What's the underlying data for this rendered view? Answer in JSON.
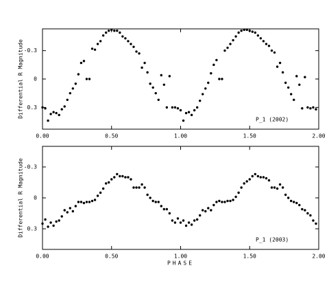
{
  "chart_data": [
    {
      "type": "scatter",
      "ylabel": "Differential R Magnitude",
      "annotation": "P_1 (2002)",
      "color": "#000000",
      "xlim": [
        0,
        2
      ],
      "ylim": [
        0.53,
        -0.53
      ],
      "xticks": [
        {
          "value": 0,
          "label": "0.00"
        },
        {
          "value": 0.5,
          "label": "0.50"
        },
        {
          "value": 1,
          "label": "1.00"
        },
        {
          "value": 1.5,
          "label": "1.50"
        },
        {
          "value": 2,
          "label": "2.00"
        }
      ],
      "yticks": [
        -0.3,
        0,
        0.3
      ],
      "x": [
        0,
        0.02,
        0.04,
        0.06,
        0.08,
        0.1,
        0.12,
        0.14,
        0.16,
        0.18,
        0.2,
        0.22,
        0.24,
        0.26,
        0.28,
        0.3,
        0.32,
        0.34,
        0.36,
        0.38,
        0.4,
        0.42,
        0.44,
        0.46,
        0.48,
        0.5,
        0.52,
        0.54,
        0.56,
        0.58,
        0.6,
        0.62,
        0.64,
        0.66,
        0.68,
        0.7,
        0.72,
        0.74,
        0.76,
        0.78,
        0.8,
        0.82,
        0.84,
        0.86,
        0.88,
        0.9,
        0.92,
        0.94,
        0.96,
        0.98,
        1,
        1.02,
        1.04,
        1.06,
        1.08,
        1.1,
        1.12,
        1.14,
        1.16,
        1.18,
        1.2,
        1.22,
        1.24,
        1.26,
        1.28,
        1.3,
        1.32,
        1.34,
        1.36,
        1.38,
        1.4,
        1.42,
        1.44,
        1.46,
        1.48,
        1.5,
        1.52,
        1.54,
        1.56,
        1.58,
        1.6,
        1.62,
        1.64,
        1.66,
        1.68,
        1.7,
        1.72,
        1.74,
        1.76,
        1.78,
        1.8,
        1.82,
        1.84,
        1.86,
        1.88,
        1.9,
        1.92,
        1.94,
        1.96,
        1.98
      ],
      "values": [
        0.3,
        0.31,
        0.44,
        0.37,
        0.35,
        0.36,
        0.38,
        0.32,
        0.29,
        0.22,
        0.15,
        0.1,
        0.05,
        -0.05,
        -0.17,
        -0.19,
        0.0,
        0.0,
        -0.32,
        -0.31,
        -0.37,
        -0.4,
        -0.46,
        -0.49,
        -0.51,
        -0.52,
        -0.51,
        -0.51,
        -0.49,
        -0.45,
        -0.43,
        -0.4,
        -0.37,
        -0.34,
        -0.29,
        -0.27,
        -0.12,
        -0.17,
        -0.07,
        0.05,
        0.09,
        0.15,
        0.22,
        -0.04,
        0.06,
        0.3,
        -0.03,
        0.3,
        0.3,
        0.31,
        0.33,
        0.44,
        0.36,
        0.35,
        0.38,
        0.33,
        0.3,
        0.23,
        0.16,
        0.1,
        0.04,
        -0.06,
        -0.15,
        -0.2,
        0.0,
        0.0,
        -0.3,
        -0.33,
        -0.37,
        -0.41,
        -0.45,
        -0.49,
        -0.51,
        -0.52,
        -0.52,
        -0.51,
        -0.5,
        -0.49,
        -0.46,
        -0.43,
        -0.4,
        -0.37,
        -0.35,
        -0.3,
        -0.28,
        -0.13,
        -0.17,
        -0.07,
        0.04,
        0.09,
        0.16,
        0.22,
        -0.03,
        0.06,
        0.31,
        -0.02,
        0.3,
        0.31,
        0.3,
        0.32
      ]
    },
    {
      "type": "scatter",
      "ylabel": "Differential R Magnitude",
      "annotation": "P_1 (2003)",
      "xlabel": "PHASE",
      "color": "#000000",
      "xlim": [
        0,
        2
      ],
      "ylim": [
        0.5,
        -0.5
      ],
      "xticks": [
        {
          "value": 0,
          "label": "0.00"
        },
        {
          "value": 0.5,
          "label": "0.50"
        },
        {
          "value": 1,
          "label": "1.00"
        },
        {
          "value": 1.5,
          "label": "1.50"
        },
        {
          "value": 2,
          "label": "2.00"
        }
      ],
      "yticks": [
        -0.3,
        0,
        0.3
      ],
      "x": [
        0,
        0.02,
        0.04,
        0.06,
        0.08,
        0.1,
        0.12,
        0.14,
        0.16,
        0.18,
        0.2,
        0.22,
        0.24,
        0.26,
        0.28,
        0.3,
        0.32,
        0.34,
        0.36,
        0.38,
        0.4,
        0.42,
        0.44,
        0.46,
        0.48,
        0.5,
        0.52,
        0.54,
        0.56,
        0.58,
        0.6,
        0.62,
        0.64,
        0.66,
        0.68,
        0.7,
        0.72,
        0.74,
        0.76,
        0.78,
        0.8,
        0.82,
        0.84,
        0.86,
        0.88,
        0.9,
        0.92,
        0.94,
        0.96,
        0.98,
        1,
        1.02,
        1.04,
        1.06,
        1.08,
        1.1,
        1.12,
        1.14,
        1.16,
        1.18,
        1.2,
        1.22,
        1.24,
        1.26,
        1.28,
        1.3,
        1.32,
        1.34,
        1.36,
        1.38,
        1.4,
        1.42,
        1.44,
        1.46,
        1.48,
        1.5,
        1.52,
        1.54,
        1.56,
        1.58,
        1.6,
        1.62,
        1.64,
        1.66,
        1.68,
        1.7,
        1.72,
        1.74,
        1.76,
        1.78,
        1.8,
        1.82,
        1.84,
        1.86,
        1.88,
        1.9,
        1.92,
        1.94,
        1.96,
        1.98
      ],
      "values": [
        0.25,
        0.21,
        0.28,
        0.24,
        0.27,
        0.23,
        0.22,
        0.18,
        0.12,
        0.14,
        0.1,
        0.13,
        0.08,
        0.04,
        0.04,
        0.05,
        0.04,
        0.04,
        0.03,
        0.02,
        -0.02,
        -0.05,
        -0.09,
        -0.14,
        -0.15,
        -0.18,
        -0.2,
        -0.23,
        -0.21,
        -0.21,
        -0.2,
        -0.2,
        -0.18,
        -0.1,
        -0.1,
        -0.1,
        -0.13,
        -0.1,
        -0.03,
        0.0,
        0.03,
        0.04,
        0.04,
        0.08,
        0.11,
        0.11,
        0.15,
        0.22,
        0.24,
        0.2,
        0.24,
        0.22,
        0.27,
        0.24,
        0.26,
        0.22,
        0.21,
        0.17,
        0.12,
        0.13,
        0.1,
        0.12,
        0.07,
        0.04,
        0.03,
        0.04,
        0.04,
        0.03,
        0.03,
        0.02,
        -0.01,
        -0.05,
        -0.1,
        -0.14,
        -0.16,
        -0.18,
        -0.21,
        -0.23,
        -0.21,
        -0.2,
        -0.2,
        -0.19,
        -0.17,
        -0.1,
        -0.1,
        -0.09,
        -0.13,
        -0.1,
        -0.03,
        0.0,
        0.03,
        0.04,
        0.05,
        0.07,
        0.11,
        0.12,
        0.15,
        0.17,
        0.22,
        0.25
      ]
    }
  ]
}
